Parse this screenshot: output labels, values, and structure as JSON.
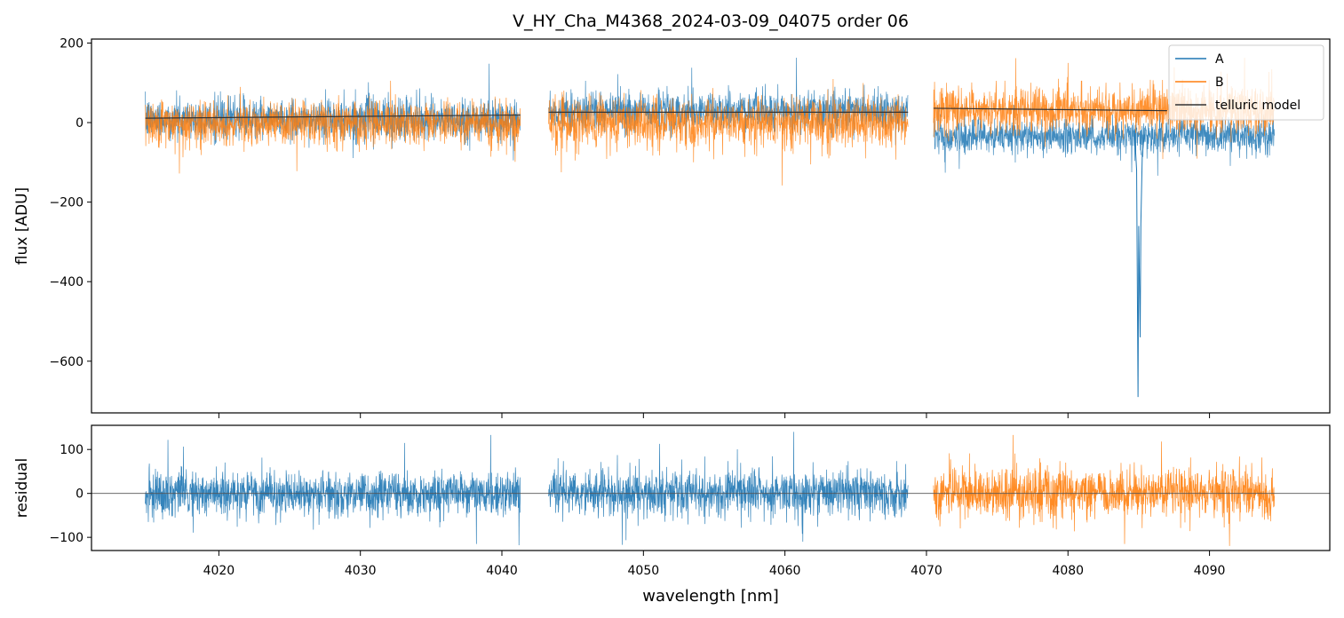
{
  "title": "V_HY_Cha_M4368_2024-03-09_04075  order 06",
  "colors": {
    "A": "#1f77b4",
    "B": "#ff7f0e",
    "model": "#333333",
    "zero": "#555555"
  },
  "chart_data": [
    {
      "type": "line",
      "panel": "flux",
      "title": "V_HY_Cha_M4368_2024-03-09_04075  order 06",
      "xlabel": "",
      "ylabel": "flux [ADU]",
      "xlim": [
        4011,
        4098.5
      ],
      "ylim": [
        -730,
        210
      ],
      "yticks": [
        200,
        0,
        -200,
        -400,
        -600
      ],
      "ytick_labels": [
        "200",
        "0",
        "−200",
        "−400",
        "−600"
      ],
      "xticks": [
        4020,
        4030,
        4040,
        4050,
        4060,
        4070,
        4080,
        4090
      ],
      "legend": {
        "position": "top-right",
        "entries": [
          "A",
          "B",
          "telluric model"
        ]
      },
      "segments": [
        {
          "x_range": [
            4014.8,
            4041.3
          ],
          "A": {
            "mean": 8,
            "noise": 28,
            "spikes": [
              [
                4039.1,
                148
              ],
              [
                4040.8,
                -95
              ]
            ]
          },
          "B": {
            "mean": -2,
            "noise": 30,
            "spikes": [
              [
                4017.2,
                -128
              ],
              [
                4025.5,
                -122
              ]
            ]
          },
          "model": [
            [
              4014.8,
              11
            ],
            [
              4041.3,
              19
            ]
          ]
        },
        {
          "x_range": [
            4043.3,
            4068.7
          ],
          "A": {
            "mean": 30,
            "noise": 26,
            "spikes": [
              [
                4060.8,
                163
              ],
              [
                4053.4,
                138
              ]
            ]
          },
          "B": {
            "mean": 0,
            "noise": 33,
            "spikes": [
              [
                4059.8,
                -158
              ],
              [
                4044.2,
                -125
              ]
            ]
          },
          "model": [
            [
              4043.3,
              26
            ],
            [
              4068.7,
              26
            ]
          ]
        },
        {
          "x_range": [
            4070.5,
            4094.6
          ],
          "A": {
            "mean": -35,
            "noise": 24,
            "spikes": [
              [
                4084.5,
                -125
              ]
            ]
          },
          "B": {
            "mean": 33,
            "noise": 32,
            "spikes": [
              [
                4076.3,
                162
              ],
              [
                4080.0,
                150
              ]
            ]
          },
          "model": [
            [
              4070.5,
              36
            ],
            [
              4087.0,
              30
            ]
          ]
        }
      ],
      "absorption_line_A": [
        [
          4084.7,
          -20
        ],
        [
          4084.85,
          -120
        ],
        [
          4084.95,
          -690
        ],
        [
          4085.0,
          -260
        ],
        [
          4085.05,
          -400
        ],
        [
          4085.1,
          -540
        ],
        [
          4085.15,
          -255
        ],
        [
          4085.25,
          -80
        ],
        [
          4085.4,
          -30
        ]
      ]
    },
    {
      "type": "line",
      "panel": "residual",
      "xlabel": "wavelength [nm]",
      "ylabel": "residual",
      "xlim": [
        4011,
        4098.5
      ],
      "ylim": [
        -130,
        155
      ],
      "yticks": [
        100,
        0,
        -100
      ],
      "ytick_labels": [
        "100",
        "0",
        "−100"
      ],
      "xticks": [
        4020,
        4030,
        4040,
        4050,
        4060,
        4070,
        4080,
        4090
      ],
      "xtick_labels": [
        "4020",
        "4030",
        "4040",
        "4050",
        "4060",
        "4070",
        "4080",
        "4090"
      ],
      "segments": [
        {
          "x_range": [
            4014.8,
            4041.3
          ],
          "series": "A",
          "noise": 28,
          "spikes": [
            [
              4016.4,
              122
            ],
            [
              4039.2,
              133
            ],
            [
              4041.2,
              -118
            ],
            [
              4038.2,
              -115
            ]
          ]
        },
        {
          "x_range": [
            4043.3,
            4068.7
          ],
          "series": "A",
          "noise": 29,
          "spikes": [
            [
              4060.6,
              140
            ],
            [
              4048.5,
              -117
            ]
          ]
        },
        {
          "x_range": [
            4070.5,
            4094.6
          ],
          "series": "B",
          "noise": 31,
          "spikes": [
            [
              4076.1,
              133
            ],
            [
              4084.0,
              -115
            ],
            [
              4086.6,
              118
            ]
          ]
        }
      ],
      "zero_line": 0
    }
  ]
}
